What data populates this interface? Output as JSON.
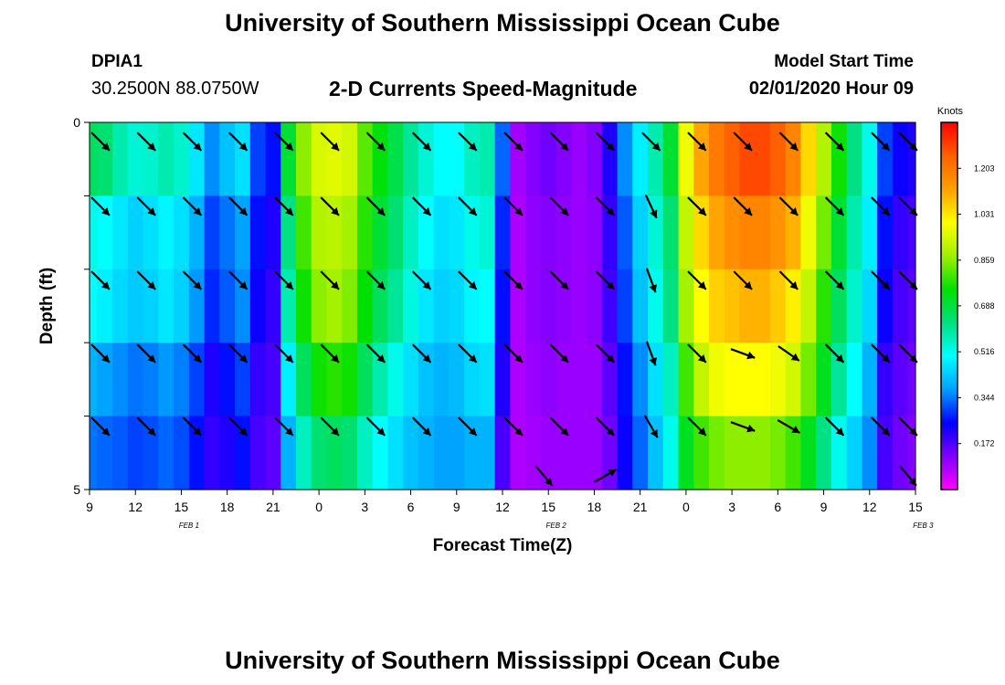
{
  "header": {
    "title": "University of Southern Mississippi Ocean Cube",
    "station_id": "DPIA1",
    "station_coords": "30.2500N 88.0750W",
    "chart_title": "2-D Currents Speed-Magnitude",
    "model_label": "Model Start Time",
    "model_time": "02/01/2020 Hour 09"
  },
  "footer": {
    "title": "University of Southern Mississippi Ocean Cube"
  },
  "chart_data": {
    "type": "heatmap",
    "xlabel": "Forecast Time(Z)",
    "ylabel": "Depth (ft)",
    "x_tick_labels": [
      "9",
      "12",
      "15",
      "18",
      "21",
      "0",
      "3",
      "6",
      "9",
      "12",
      "15",
      "18",
      "21",
      "0",
      "3",
      "6",
      "9",
      "12",
      "15"
    ],
    "date_labels": [
      {
        "text": "FEB 1",
        "hour_offset": 6.5
      },
      {
        "text": "FEB 2",
        "hour_offset": 30.5
      },
      {
        "text": "FEB 3",
        "hour_offset": 54.5
      }
    ],
    "x_range_hours": [
      0,
      54
    ],
    "y_tick_labels": [
      {
        "value": 0,
        "label": "0"
      },
      {
        "value": 5,
        "label": "5"
      }
    ],
    "ylim": [
      0,
      5
    ],
    "colorbar": {
      "label": "Knots",
      "tick_labels": [
        "1.203",
        "1.031",
        "0.859",
        "0.688",
        "0.516",
        "0.344",
        "0.172"
      ],
      "tick_values": [
        1.203,
        1.031,
        0.859,
        0.688,
        0.516,
        0.344,
        0.172
      ],
      "range": [
        0,
        1.375
      ],
      "colors": [
        "#ff00ff",
        "#7f00ff",
        "#0000ff",
        "#00a0ff",
        "#00ffff",
        "#00e080",
        "#00e000",
        "#a0f000",
        "#ffff00",
        "#ffa000",
        "#ff6000",
        "#ff0000"
      ]
    },
    "depth_layers": [
      0.5,
      1.5,
      2.5,
      3.5,
      4.5
    ],
    "speed_hours": [
      0,
      1,
      2,
      3,
      4,
      5,
      6,
      7,
      8,
      9,
      10,
      11,
      12,
      13,
      14,
      15,
      16,
      17,
      18,
      19,
      20,
      21,
      22,
      23,
      24,
      25,
      26,
      27,
      28,
      29,
      30,
      31,
      32,
      33,
      34,
      35,
      36,
      37,
      38,
      39,
      40,
      41,
      42,
      43,
      44,
      45,
      46,
      47,
      48,
      49,
      50,
      51,
      52,
      53,
      54
    ],
    "speed_by_layer": [
      [
        0.66,
        0.64,
        0.58,
        0.54,
        0.55,
        0.58,
        0.55,
        0.47,
        0.36,
        0.42,
        0.46,
        0.3,
        0.26,
        0.7,
        0.86,
        0.95,
        0.96,
        0.94,
        0.82,
        0.74,
        0.68,
        0.6,
        0.54,
        0.5,
        0.5,
        0.56,
        0.58,
        0.33,
        0.09,
        0.12,
        0.14,
        0.12,
        0.1,
        0.12,
        0.22,
        0.36,
        0.48,
        0.58,
        0.7,
        0.98,
        1.12,
        1.2,
        1.25,
        1.28,
        1.28,
        1.25,
        1.18,
        1.05,
        0.9,
        0.76,
        0.62,
        0.52,
        0.3,
        0.24,
        0.22
      ],
      [
        0.52,
        0.5,
        0.47,
        0.44,
        0.46,
        0.49,
        0.46,
        0.4,
        0.3,
        0.34,
        0.38,
        0.26,
        0.22,
        0.62,
        0.8,
        0.9,
        0.91,
        0.88,
        0.78,
        0.7,
        0.64,
        0.56,
        0.5,
        0.46,
        0.47,
        0.52,
        0.54,
        0.28,
        0.08,
        0.11,
        0.12,
        0.11,
        0.1,
        0.11,
        0.2,
        0.32,
        0.44,
        0.54,
        0.64,
        0.92,
        1.05,
        1.12,
        1.16,
        1.18,
        1.18,
        1.15,
        1.1,
        0.98,
        0.84,
        0.7,
        0.58,
        0.48,
        0.26,
        0.2,
        0.18
      ],
      [
        0.5,
        0.48,
        0.45,
        0.43,
        0.44,
        0.47,
        0.44,
        0.37,
        0.28,
        0.32,
        0.36,
        0.24,
        0.2,
        0.58,
        0.76,
        0.86,
        0.88,
        0.85,
        0.75,
        0.66,
        0.6,
        0.53,
        0.47,
        0.44,
        0.45,
        0.49,
        0.5,
        0.26,
        0.08,
        0.11,
        0.12,
        0.11,
        0.1,
        0.11,
        0.19,
        0.3,
        0.42,
        0.52,
        0.62,
        0.88,
        1.0,
        1.06,
        1.08,
        1.1,
        1.1,
        1.07,
        1.02,
        0.92,
        0.78,
        0.66,
        0.55,
        0.45,
        0.24,
        0.18,
        0.16
      ],
      [
        0.4,
        0.38,
        0.36,
        0.34,
        0.35,
        0.37,
        0.35,
        0.3,
        0.22,
        0.26,
        0.3,
        0.2,
        0.18,
        0.48,
        0.66,
        0.76,
        0.78,
        0.76,
        0.66,
        0.58,
        0.52,
        0.46,
        0.42,
        0.4,
        0.41,
        0.45,
        0.46,
        0.22,
        0.08,
        0.1,
        0.11,
        0.1,
        0.1,
        0.1,
        0.16,
        0.26,
        0.36,
        0.46,
        0.56,
        0.8,
        0.92,
        0.98,
        1.0,
        1.0,
        1.0,
        0.98,
        0.94,
        0.84,
        0.72,
        0.6,
        0.5,
        0.4,
        0.2,
        0.16,
        0.14
      ],
      [
        0.34,
        0.33,
        0.32,
        0.3,
        0.31,
        0.33,
        0.31,
        0.26,
        0.2,
        0.22,
        0.26,
        0.18,
        0.16,
        0.4,
        0.56,
        0.64,
        0.66,
        0.64,
        0.56,
        0.5,
        0.46,
        0.42,
        0.4,
        0.38,
        0.38,
        0.4,
        0.4,
        0.18,
        0.08,
        0.09,
        0.1,
        0.1,
        0.1,
        0.1,
        0.14,
        0.24,
        0.33,
        0.42,
        0.52,
        0.72,
        0.8,
        0.84,
        0.86,
        0.86,
        0.86,
        0.84,
        0.8,
        0.72,
        0.62,
        0.52,
        0.44,
        0.36,
        0.18,
        0.14,
        0.12
      ]
    ],
    "arrow_hours": [
      0,
      3,
      6,
      9,
      12,
      15,
      18,
      21,
      24,
      27,
      30,
      33,
      36,
      39,
      42,
      45,
      48,
      51,
      54
    ],
    "arrow_direction_deg": [
      135,
      135,
      135,
      135,
      135,
      135,
      135,
      135,
      135,
      135,
      135,
      135,
      135,
      135,
      135,
      135,
      135,
      135,
      135
    ],
    "arrow_direction_by_layer": [
      [
        135,
        135,
        135,
        135,
        135,
        135,
        135,
        135,
        135,
        135,
        135,
        135,
        135,
        135,
        135,
        135,
        135,
        135,
        135
      ],
      [
        135,
        135,
        135,
        135,
        135,
        135,
        135,
        135,
        135,
        135,
        135,
        135,
        155,
        135,
        135,
        135,
        135,
        135,
        135
      ],
      [
        135,
        135,
        135,
        135,
        135,
        135,
        135,
        135,
        135,
        135,
        135,
        135,
        160,
        135,
        135,
        135,
        135,
        135,
        135
      ],
      [
        135,
        135,
        135,
        135,
        135,
        135,
        135,
        135,
        135,
        135,
        135,
        135,
        160,
        135,
        110,
        125,
        135,
        135,
        135
      ],
      [
        135,
        135,
        135,
        135,
        135,
        135,
        135,
        135,
        135,
        135,
        135,
        135,
        150,
        135,
        110,
        120,
        135,
        135,
        135
      ]
    ],
    "bottom_layer_arrows": [
      {
        "hour": 29,
        "direction_deg": 140
      },
      {
        "hour": 33,
        "direction_deg": 60
      },
      {
        "hour": 54,
        "direction_deg": 140
      }
    ],
    "grid": false,
    "legend": "right"
  }
}
